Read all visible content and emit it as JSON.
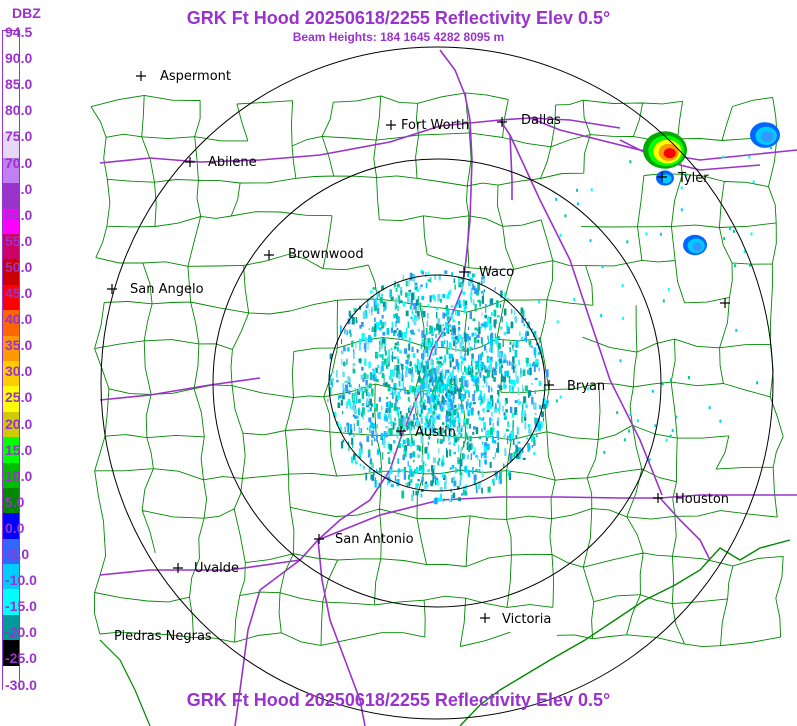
{
  "header": {
    "title": "GRK Ft Hood 20250618/2255 Reflectivity Elev 0.5°",
    "subtitle": "Beam Heights: 184 1645 4282 8095 m",
    "footer_title": "GRK Ft Hood 20250618/2255 Reflectivity Elev 0.5°"
  },
  "legend": {
    "unit": "DBZ",
    "labels": [
      "94.5",
      "90.0",
      "85.0",
      "80.0",
      "75.0",
      "70.0",
      "65.0",
      "60.0",
      "55.0",
      "50.0",
      "45.0",
      "40.0",
      "35.0",
      "30.0",
      "25.0",
      "20.0",
      "15.0",
      "10.0",
      "5.0",
      "0.0",
      "-5.0",
      "-10.0",
      "-15.0",
      "-20.0",
      "-25.0",
      "-30.0"
    ],
    "colors": [
      "#ffffff",
      "#ffffff",
      "#ffffff",
      "#ffffff",
      "#e8d8f8",
      "#c080f0",
      "#9933cc",
      "#ff00ff",
      "#cc0066",
      "#cc0000",
      "#ff0000",
      "#ff6600",
      "#ff9900",
      "#ffcc00",
      "#ffff00",
      "#cccc00",
      "#00ff00",
      "#00bb00",
      "#008800",
      "#0000ff",
      "#3366ff",
      "#00ccff",
      "#00ffff",
      "#009999",
      "#000000",
      "#ffffff"
    ]
  },
  "cities": [
    {
      "name": "Aspermont",
      "label": "Aspermont"
    },
    {
      "name": "Fort Worth",
      "label": "Fort Worth"
    },
    {
      "name": "Dallas",
      "label": "Dallas"
    },
    {
      "name": "Abilene",
      "label": "Abilene"
    },
    {
      "name": "Tyler",
      "label": "Tyler"
    },
    {
      "name": "Brownwood",
      "label": "Brownwood"
    },
    {
      "name": "Waco",
      "label": "Waco"
    },
    {
      "name": "San Angelo",
      "label": "San Angelo"
    },
    {
      "name": "Bryan",
      "label": "Bryan"
    },
    {
      "name": "Austin",
      "label": "Austin"
    },
    {
      "name": "Houston",
      "label": "Houston"
    },
    {
      "name": "San Antonio",
      "label": "San Antonio"
    },
    {
      "name": "Uvalde",
      "label": "Uvalde"
    },
    {
      "name": "Victoria",
      "label": "Victoria"
    },
    {
      "name": "Piedras Negras",
      "label": "Piedras Negras"
    },
    {
      "name": "Unnamed",
      "label": ""
    }
  ],
  "colors": {
    "title": "#9933cc",
    "roads": "#9933cc",
    "county_lines": "#008800",
    "range_rings": "#000000"
  }
}
